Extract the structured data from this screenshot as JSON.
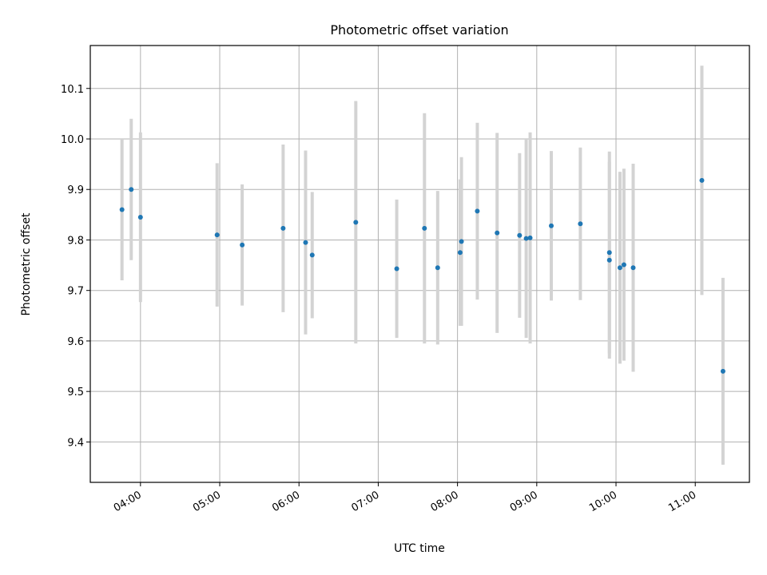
{
  "chart_data": {
    "type": "scatter",
    "title": "Photometric offset variation",
    "xlabel": "UTC time",
    "ylabel": "Photometric offset",
    "x_tick_labels": [
      "04:00",
      "05:00",
      "06:00",
      "07:00",
      "08:00",
      "09:00",
      "10:00",
      "11:00"
    ],
    "y_tick_labels": [
      "9.4",
      "9.5",
      "9.6",
      "9.7",
      "9.8",
      "9.9",
      "10.0",
      "10.1"
    ],
    "xlim": [
      "03:22",
      "11:41"
    ],
    "ylim": [
      9.32,
      10.185
    ],
    "grid": true,
    "marker_color": "#1f77b4",
    "errorbar_color": "#d3d3d3",
    "points": [
      {
        "x": "03:46",
        "y": 9.86,
        "err": 0.14
      },
      {
        "x": "03:53",
        "y": 9.9,
        "err": 0.14
      },
      {
        "x": "04:00",
        "y": 9.845,
        "err": 0.168
      },
      {
        "x": "04:58",
        "y": 9.81,
        "err": 0.142
      },
      {
        "x": "05:17",
        "y": 9.79,
        "err": 0.12
      },
      {
        "x": "05:48",
        "y": 9.823,
        "err": 0.166
      },
      {
        "x": "06:05",
        "y": 9.795,
        "err": 0.182
      },
      {
        "x": "06:10",
        "y": 9.77,
        "err": 0.125
      },
      {
        "x": "06:43",
        "y": 9.835,
        "err": 0.24
      },
      {
        "x": "07:14",
        "y": 9.743,
        "err": 0.137
      },
      {
        "x": "07:35",
        "y": 9.823,
        "err": 0.228
      },
      {
        "x": "07:45",
        "y": 9.745,
        "err": 0.152
      },
      {
        "x": "08:02",
        "y": 9.775,
        "err": 0.145
      },
      {
        "x": "08:03",
        "y": 9.797,
        "err": 0.167
      },
      {
        "x": "08:15",
        "y": 9.857,
        "err": 0.175
      },
      {
        "x": "08:30",
        "y": 9.814,
        "err": 0.198
      },
      {
        "x": "08:47",
        "y": 9.809,
        "err": 0.163
      },
      {
        "x": "08:52",
        "y": 9.803,
        "err": 0.197
      },
      {
        "x": "08:55",
        "y": 9.804,
        "err": 0.209
      },
      {
        "x": "09:11",
        "y": 9.828,
        "err": 0.148
      },
      {
        "x": "09:33",
        "y": 9.832,
        "err": 0.151
      },
      {
        "x": "09:55",
        "y": 9.775,
        "err": 0.2
      },
      {
        "x": "09:55",
        "y": 9.76,
        "err": 0.195
      },
      {
        "x": "10:03",
        "y": 9.745,
        "err": 0.19
      },
      {
        "x": "10:06",
        "y": 9.751,
        "err": 0.19
      },
      {
        "x": "10:13",
        "y": 9.745,
        "err": 0.206
      },
      {
        "x": "11:05",
        "y": 9.918,
        "err": 0.227
      },
      {
        "x": "11:21",
        "y": 9.54,
        "err": 0.185
      }
    ]
  }
}
